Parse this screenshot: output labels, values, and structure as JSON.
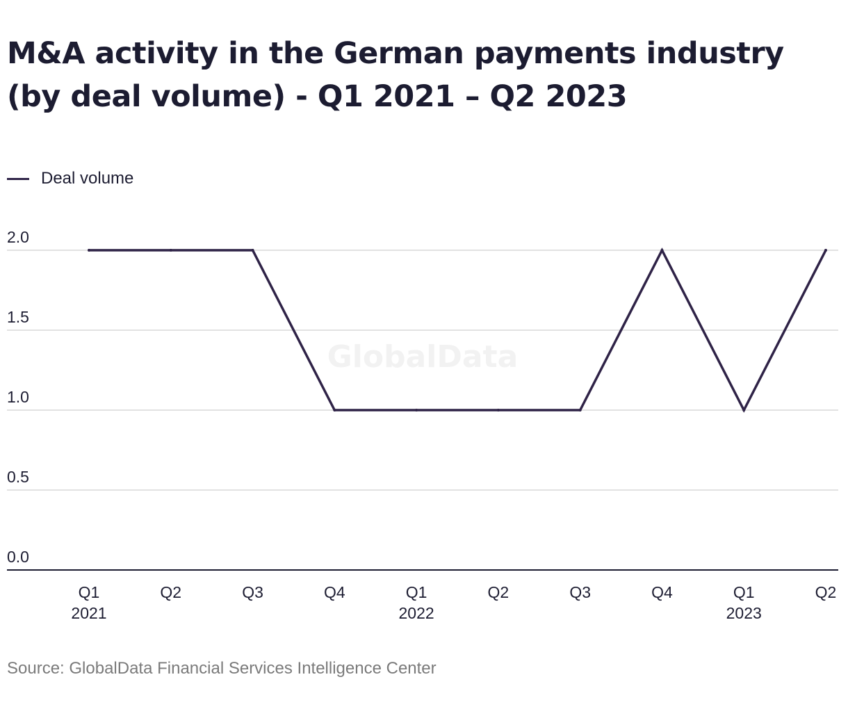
{
  "title": "M&A activity in the German payments industry (by deal volume) - Q1 2021 – Q2 2023",
  "legend": {
    "label": "Deal volume"
  },
  "watermark": "GlobalData",
  "source": "Source: GlobalData Financial Services Intelligence Center",
  "colors": {
    "line": "#2f2347",
    "grid": "#d9d9d9",
    "axis": "#1c1c31",
    "text": "#1c1c31",
    "watermark": "#f2f2f2"
  },
  "chart_data": {
    "type": "line",
    "title": "M&A activity in the German payments industry (by deal volume) - Q1 2021 – Q2 2023",
    "xlabel": "",
    "ylabel": "",
    "categories": [
      {
        "quarter": "Q1",
        "year": "2021"
      },
      {
        "quarter": "Q2",
        "year": ""
      },
      {
        "quarter": "Q3",
        "year": ""
      },
      {
        "quarter": "Q4",
        "year": ""
      },
      {
        "quarter": "Q1",
        "year": "2022"
      },
      {
        "quarter": "Q2",
        "year": ""
      },
      {
        "quarter": "Q3",
        "year": ""
      },
      {
        "quarter": "Q4",
        "year": ""
      },
      {
        "quarter": "Q1",
        "year": "2023"
      },
      {
        "quarter": "Q2",
        "year": ""
      }
    ],
    "series": [
      {
        "name": "Deal volume",
        "values": [
          2,
          2,
          2,
          1,
          1,
          1,
          1,
          2,
          1,
          2
        ]
      }
    ],
    "ylim": [
      0,
      2
    ],
    "yticks": [
      "0.0",
      "0.5",
      "1.0",
      "1.5",
      "2.0"
    ],
    "grid": true,
    "legend_position": "top-left"
  }
}
